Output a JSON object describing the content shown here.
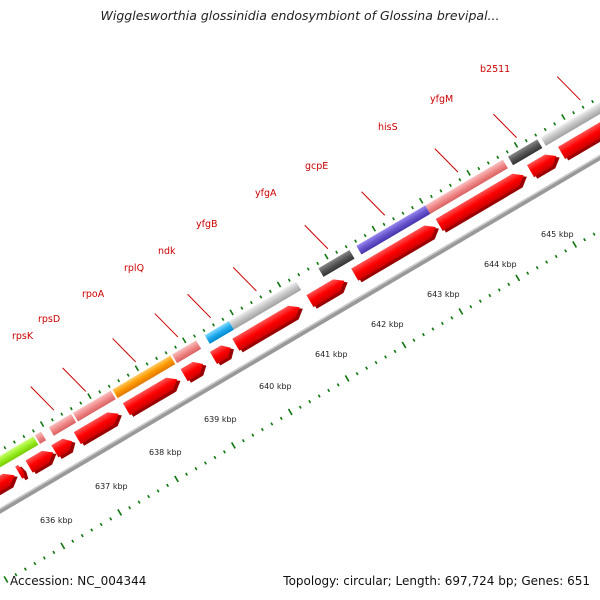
{
  "title": "Wigglesworthia glossinidia endosymbiont of Glossina brevipal...",
  "footer": {
    "accession": "Accession: NC_004344",
    "topology": "Topology: circular; Length: 697,724 bp; Genes: 651"
  },
  "scale_ticks": [
    "636 kbp",
    "637 kbp",
    "638 kbp",
    "639 kbp",
    "640 kbp",
    "641 kbp",
    "642 kbp",
    "643 kbp",
    "644 kbp",
    "645 kbp"
  ],
  "gene_labels": [
    "rpsK",
    "rpsD",
    "rpoA",
    "rplQ",
    "ndk",
    "yfgB",
    "yfgA",
    "gcpE",
    "hisS",
    "yfgM",
    "b2511"
  ],
  "colors": {
    "forward_strand": "#ff0000",
    "axis": "#999999",
    "tick": "#117711",
    "label": "#cc0000",
    "gene_pink": "#f08888",
    "gene_orange": "#ff9900",
    "gene_cyan": "#22aaee",
    "gene_gray": "#bbbbbb",
    "gene_dark": "#555555",
    "gene_purple": "#6655cc",
    "gene_lime": "#99ee22"
  }
}
